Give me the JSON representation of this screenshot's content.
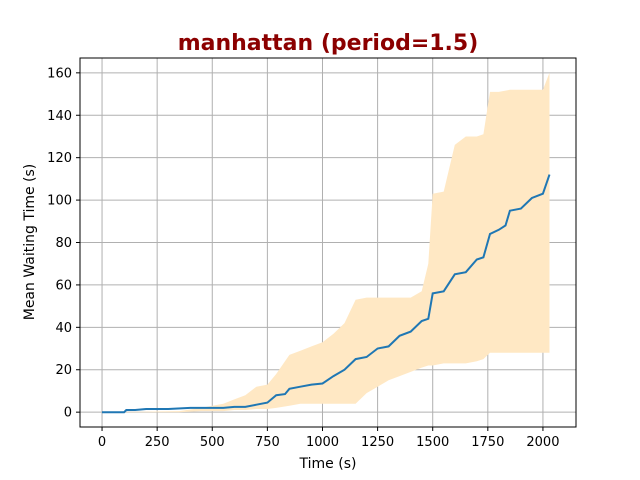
{
  "colors": {
    "title": "#8b0000",
    "line": "#1f77b4",
    "band": "#ffe8c4",
    "grid": "#b0b0b0",
    "axis": "#000000"
  },
  "chart_data": {
    "type": "line",
    "title": "manhattan (period=1.5)",
    "xlabel": "Time (s)",
    "ylabel": "Mean Waiting Time (s)",
    "xlim": [
      -100,
      2150
    ],
    "ylim": [
      -7,
      167
    ],
    "xticks": [
      0,
      250,
      500,
      750,
      1000,
      1250,
      1500,
      1750,
      2000
    ],
    "yticks": [
      0,
      20,
      40,
      60,
      80,
      100,
      120,
      140,
      160
    ],
    "grid": true,
    "series": [
      {
        "x": [
          0,
          100,
          110,
          150,
          200,
          250,
          300,
          400,
          500,
          550,
          600,
          650,
          700,
          750,
          790,
          830,
          850,
          900,
          950,
          1000,
          1050,
          1100,
          1150,
          1200,
          1250,
          1300,
          1350,
          1400,
          1450,
          1480,
          1500,
          1550,
          1600,
          1650,
          1700,
          1730,
          1760,
          1800,
          1830,
          1850,
          1900,
          1950,
          2000,
          2030
        ],
        "y": [
          0,
          0,
          1,
          1,
          1.5,
          1.5,
          1.5,
          2,
          2,
          2,
          2.5,
          2.5,
          3.5,
          4.5,
          8,
          8.5,
          11,
          12,
          13,
          13.5,
          17,
          20,
          25,
          26,
          30,
          31,
          36,
          38,
          43,
          44,
          56,
          57,
          65,
          66,
          72,
          73,
          84,
          86,
          88,
          95,
          96,
          101,
          103,
          112
        ]
      }
    ],
    "band": {
      "x": [
        0,
        350,
        450,
        500,
        550,
        600,
        650,
        700,
        750,
        790,
        850,
        900,
        950,
        1000,
        1050,
        1100,
        1150,
        1200,
        1250,
        1300,
        1350,
        1400,
        1450,
        1480,
        1500,
        1550,
        1600,
        1650,
        1700,
        1730,
        1760,
        1800,
        1850,
        1900,
        1950,
        2000,
        2030
      ],
      "lower": [
        0,
        0,
        0.5,
        0.5,
        0.5,
        1,
        1,
        1.5,
        1.5,
        2,
        3,
        4,
        4,
        4,
        4,
        4,
        4,
        9,
        12,
        15,
        17,
        19,
        21,
        22,
        22,
        23,
        23,
        23,
        24,
        25,
        28,
        28,
        28,
        28,
        28,
        28,
        28
      ],
      "upper": [
        0,
        0.5,
        2,
        3,
        4,
        6,
        8,
        12,
        13,
        18,
        27,
        29,
        31,
        33,
        37,
        42,
        53,
        54,
        54,
        54,
        54,
        54,
        57,
        70,
        103,
        104,
        126,
        130,
        130,
        131,
        151,
        151,
        152,
        152,
        152,
        152,
        160
      ]
    }
  }
}
